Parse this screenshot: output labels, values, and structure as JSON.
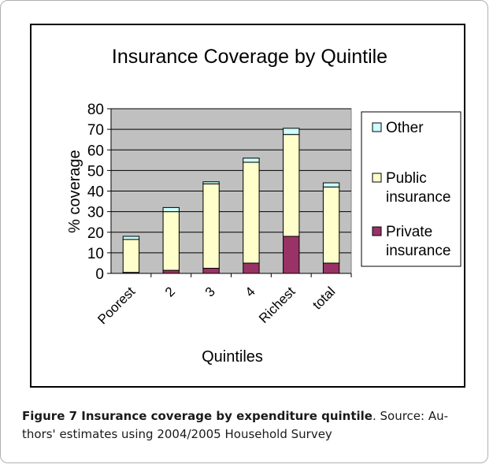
{
  "chart_data": {
    "type": "bar",
    "stacked": true,
    "title": "Insurance Coverage by Quintile",
    "xlabel": "Quintiles",
    "ylabel": "% coverage",
    "ylim": [
      0,
      80
    ],
    "yticks": [
      0,
      10,
      20,
      30,
      40,
      50,
      60,
      70,
      80
    ],
    "grid": true,
    "legend_position": "right",
    "categories": [
      "Poorest",
      "2",
      "3",
      "4",
      "Richest",
      "total"
    ],
    "series": [
      {
        "name": "Private insurance",
        "color": "#993366",
        "values": [
          0.5,
          1.5,
          2.5,
          5,
          18,
          5
        ]
      },
      {
        "name": "Public insurance",
        "color": "#ffffcc",
        "values": [
          16,
          28.5,
          41,
          49,
          49.5,
          37
        ]
      },
      {
        "name": "Other",
        "color": "#ccffff",
        "values": [
          1.5,
          2,
          1,
          2,
          3,
          2
        ]
      }
    ]
  },
  "caption": {
    "label": "Figure 7 Insurance coverage by expenditure quintile",
    "line1_rest": ". Source: Au-",
    "line2": "thors' estimates using 2004/2005 Household Survey"
  }
}
